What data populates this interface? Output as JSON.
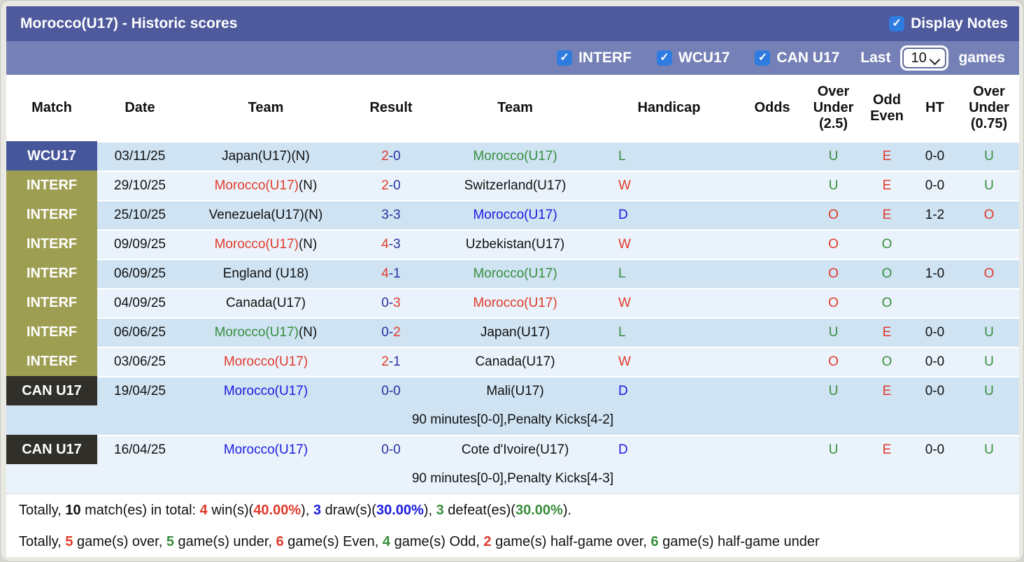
{
  "header": {
    "title": "Morocco(U17) - Historic scores",
    "display_notes_label": "Display Notes"
  },
  "filters": {
    "leagues": [
      {
        "label": "INTERF",
        "checked": true
      },
      {
        "label": "WCU17",
        "checked": true
      },
      {
        "label": "CAN U17",
        "checked": true
      }
    ],
    "last_label": "Last",
    "games_count": "10",
    "games_label": "games"
  },
  "colors": {
    "red": "#e03a2b",
    "green": "#388e3c",
    "blue": "#1b1be0",
    "navy": "#27339e",
    "black": "#111111",
    "topbar": "#4e5a9c",
    "filterbar": "#7581b6",
    "row_dark": "#cfe3f3",
    "row_light": "#eaf3fb",
    "badge_wcu17": "#46569a",
    "badge_interf": "#9e9e52",
    "badge_canu17": "#302f29",
    "checkbox_blue": "#2e7ce0"
  },
  "table": {
    "columns": [
      "Match",
      "Date",
      "Team",
      "Result",
      "Team",
      "Handicap",
      "Odds",
      "Over Under (2.5)",
      "Odd Even",
      "HT",
      "Over Under (0.75)"
    ],
    "rows": [
      {
        "league": "WCU17",
        "league_color": "badge_wcu17",
        "shade": "dark",
        "date": "03/11/25",
        "home": {
          "name": "Japan(U17)(N)",
          "suffix": "",
          "color": "black"
        },
        "result": {
          "home": "2",
          "away": "0",
          "home_color": "red",
          "away_color": "navy"
        },
        "away": {
          "name": "Morocco(U17)",
          "suffix": "",
          "color": "green"
        },
        "handicap": {
          "v": "L",
          "c": "green"
        },
        "odds": "",
        "ou25": {
          "v": "U",
          "c": "green"
        },
        "odd_even": {
          "v": "E",
          "c": "red"
        },
        "ht": "0-0",
        "ou075": {
          "v": "U",
          "c": "green"
        },
        "note": ""
      },
      {
        "league": "INTERF",
        "league_color": "badge_interf",
        "shade": "light",
        "date": "29/10/25",
        "home": {
          "name": "Morocco(U17)",
          "suffix": "(N)",
          "color": "red"
        },
        "result": {
          "home": "2",
          "away": "0",
          "home_color": "red",
          "away_color": "navy"
        },
        "away": {
          "name": "Switzerland(U17)",
          "suffix": "",
          "color": "black"
        },
        "handicap": {
          "v": "W",
          "c": "red"
        },
        "odds": "",
        "ou25": {
          "v": "U",
          "c": "green"
        },
        "odd_even": {
          "v": "E",
          "c": "red"
        },
        "ht": "0-0",
        "ou075": {
          "v": "U",
          "c": "green"
        },
        "note": ""
      },
      {
        "league": "INTERF",
        "league_color": "badge_interf",
        "shade": "dark",
        "date": "25/10/25",
        "home": {
          "name": "Venezuela(U17)(N)",
          "suffix": "",
          "color": "black"
        },
        "result": {
          "home": "3",
          "away": "3",
          "home_color": "navy",
          "away_color": "navy"
        },
        "away": {
          "name": "Morocco(U17)",
          "suffix": "",
          "color": "blue"
        },
        "handicap": {
          "v": "D",
          "c": "blue"
        },
        "odds": "",
        "ou25": {
          "v": "O",
          "c": "red"
        },
        "odd_even": {
          "v": "E",
          "c": "red"
        },
        "ht": "1-2",
        "ou075": {
          "v": "O",
          "c": "red"
        },
        "note": ""
      },
      {
        "league": "INTERF",
        "league_color": "badge_interf",
        "shade": "light",
        "date": "09/09/25",
        "home": {
          "name": "Morocco(U17)",
          "suffix": "(N)",
          "color": "red"
        },
        "result": {
          "home": "4",
          "away": "3",
          "home_color": "red",
          "away_color": "navy"
        },
        "away": {
          "name": "Uzbekistan(U17)",
          "suffix": "",
          "color": "black"
        },
        "handicap": {
          "v": "W",
          "c": "red"
        },
        "odds": "",
        "ou25": {
          "v": "O",
          "c": "red"
        },
        "odd_even": {
          "v": "O",
          "c": "green"
        },
        "ht": "",
        "ou075": {
          "v": "",
          "c": "black"
        },
        "note": ""
      },
      {
        "league": "INTERF",
        "league_color": "badge_interf",
        "shade": "dark",
        "date": "06/09/25",
        "home": {
          "name": "England (U18)",
          "suffix": "",
          "color": "black"
        },
        "result": {
          "home": "4",
          "away": "1",
          "home_color": "red",
          "away_color": "navy"
        },
        "away": {
          "name": "Morocco(U17)",
          "suffix": "",
          "color": "green"
        },
        "handicap": {
          "v": "L",
          "c": "green"
        },
        "odds": "",
        "ou25": {
          "v": "O",
          "c": "red"
        },
        "odd_even": {
          "v": "O",
          "c": "green"
        },
        "ht": "1-0",
        "ou075": {
          "v": "O",
          "c": "red"
        },
        "note": ""
      },
      {
        "league": "INTERF",
        "league_color": "badge_interf",
        "shade": "light",
        "date": "04/09/25",
        "home": {
          "name": "Canada(U17)",
          "suffix": "",
          "color": "black"
        },
        "result": {
          "home": "0",
          "away": "3",
          "home_color": "navy",
          "away_color": "red"
        },
        "away": {
          "name": "Morocco(U17)",
          "suffix": "",
          "color": "red"
        },
        "handicap": {
          "v": "W",
          "c": "red"
        },
        "odds": "",
        "ou25": {
          "v": "O",
          "c": "red"
        },
        "odd_even": {
          "v": "O",
          "c": "green"
        },
        "ht": "",
        "ou075": {
          "v": "",
          "c": "black"
        },
        "note": ""
      },
      {
        "league": "INTERF",
        "league_color": "badge_interf",
        "shade": "dark",
        "date": "06/06/25",
        "home": {
          "name": "Morocco(U17)",
          "suffix": "(N)",
          "color": "green"
        },
        "result": {
          "home": "0",
          "away": "2",
          "home_color": "navy",
          "away_color": "red"
        },
        "away": {
          "name": "Japan(U17)",
          "suffix": "",
          "color": "black"
        },
        "handicap": {
          "v": "L",
          "c": "green"
        },
        "odds": "",
        "ou25": {
          "v": "U",
          "c": "green"
        },
        "odd_even": {
          "v": "E",
          "c": "red"
        },
        "ht": "0-0",
        "ou075": {
          "v": "U",
          "c": "green"
        },
        "note": ""
      },
      {
        "league": "INTERF",
        "league_color": "badge_interf",
        "shade": "light",
        "date": "03/06/25",
        "home": {
          "name": "Morocco(U17)",
          "suffix": "",
          "color": "red"
        },
        "result": {
          "home": "2",
          "away": "1",
          "home_color": "red",
          "away_color": "navy"
        },
        "away": {
          "name": "Canada(U17)",
          "suffix": "",
          "color": "black"
        },
        "handicap": {
          "v": "W",
          "c": "red"
        },
        "odds": "",
        "ou25": {
          "v": "O",
          "c": "red"
        },
        "odd_even": {
          "v": "O",
          "c": "green"
        },
        "ht": "0-0",
        "ou075": {
          "v": "U",
          "c": "green"
        },
        "note": ""
      },
      {
        "league": "CAN U17",
        "league_color": "badge_canu17",
        "shade": "dark",
        "date": "19/04/25",
        "home": {
          "name": "Morocco(U17)",
          "suffix": "",
          "color": "blue"
        },
        "result": {
          "home": "0",
          "away": "0",
          "home_color": "navy",
          "away_color": "navy"
        },
        "away": {
          "name": "Mali(U17)",
          "suffix": "",
          "color": "black"
        },
        "handicap": {
          "v": "D",
          "c": "blue"
        },
        "odds": "",
        "ou25": {
          "v": "U",
          "c": "green"
        },
        "odd_even": {
          "v": "E",
          "c": "red"
        },
        "ht": "0-0",
        "ou075": {
          "v": "U",
          "c": "green"
        },
        "note": "90 minutes[0-0],Penalty Kicks[4-2]"
      },
      {
        "league": "CAN U17",
        "league_color": "badge_canu17",
        "shade": "light",
        "date": "16/04/25",
        "home": {
          "name": "Morocco(U17)",
          "suffix": "",
          "color": "blue"
        },
        "result": {
          "home": "0",
          "away": "0",
          "home_color": "navy",
          "away_color": "navy"
        },
        "away": {
          "name": "Cote d'Ivoire(U17)",
          "suffix": "",
          "color": "black"
        },
        "handicap": {
          "v": "D",
          "c": "blue"
        },
        "odds": "",
        "ou25": {
          "v": "U",
          "c": "green"
        },
        "odd_even": {
          "v": "E",
          "c": "red"
        },
        "ht": "0-0",
        "ou075": {
          "v": "U",
          "c": "green"
        },
        "note": "90 minutes[0-0],Penalty Kicks[4-3]"
      }
    ]
  },
  "summary": {
    "line1": [
      {
        "t": "Totally, "
      },
      {
        "t": "10",
        "b": true,
        "c": "black"
      },
      {
        "t": " match(es) in total: "
      },
      {
        "t": "4",
        "b": true,
        "c": "red"
      },
      {
        "t": " win(s)("
      },
      {
        "t": "40.00%",
        "b": true,
        "c": "red"
      },
      {
        "t": "), "
      },
      {
        "t": "3",
        "b": true,
        "c": "blue"
      },
      {
        "t": " draw(s)("
      },
      {
        "t": "30.00%",
        "b": true,
        "c": "blue"
      },
      {
        "t": "), "
      },
      {
        "t": "3",
        "b": true,
        "c": "green"
      },
      {
        "t": " defeat(es)("
      },
      {
        "t": "30.00%",
        "b": true,
        "c": "green"
      },
      {
        "t": ")."
      }
    ],
    "line2": [
      {
        "t": "Totally, "
      },
      {
        "t": "5",
        "b": true,
        "c": "red"
      },
      {
        "t": " game(s) over, "
      },
      {
        "t": "5",
        "b": true,
        "c": "green"
      },
      {
        "t": " game(s) under, "
      },
      {
        "t": "6",
        "b": true,
        "c": "red"
      },
      {
        "t": " game(s) Even, "
      },
      {
        "t": "4",
        "b": true,
        "c": "green"
      },
      {
        "t": " game(s) Odd, "
      },
      {
        "t": "2",
        "b": true,
        "c": "red"
      },
      {
        "t": " game(s) half-game over, "
      },
      {
        "t": "6",
        "b": true,
        "c": "green"
      },
      {
        "t": " game(s) half-game under"
      }
    ]
  }
}
